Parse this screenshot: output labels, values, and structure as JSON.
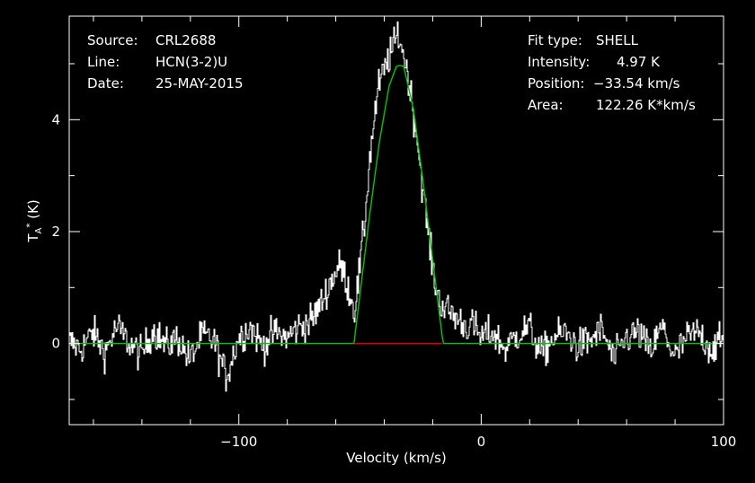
{
  "info": {
    "source_label": "Source:",
    "source": "CRL2688",
    "line_label": "Line:",
    "line": "HCN(3-2)U",
    "date_label": "Date:",
    "date": "25-MAY-2015",
    "fit_type_label": "Fit type:",
    "fit_type": "SHELL",
    "intensity_label": "Intensity:",
    "intensity": "4.97 K",
    "position_label": "Position:",
    "position": "−33.54 km/s",
    "area_label": "Area:",
    "area": "122.26 K*km/s"
  },
  "colors": {
    "background": "#000000",
    "frame": "#ffffff",
    "spectrum": "#ffffff",
    "fit": "#00c800",
    "baseline_window": "#e00000"
  },
  "chart_data": {
    "type": "line",
    "title": "",
    "xlabel": "Velocity (km/s)",
    "ylabel": "T_A* (K)",
    "xlim": [
      -170,
      100
    ],
    "ylim": [
      -1.45,
      5.85
    ],
    "x_ticks": [
      -100,
      0,
      100
    ],
    "x_tick_labels": [
      "−100",
      "0",
      "100"
    ],
    "y_ticks": [
      0,
      2,
      4
    ],
    "y_tick_labels": [
      "0",
      "2",
      "4"
    ],
    "grid": false,
    "series": [
      {
        "kind": "spectrum",
        "x": [
          -170,
          -165,
          -160,
          -155,
          -150,
          -145,
          -140,
          -135,
          -130,
          -125,
          -120,
          -115,
          -110,
          -105,
          -100,
          -95,
          -90,
          -85,
          -80,
          -75,
          -70,
          -68,
          -66,
          -64,
          -62,
          -60,
          -58,
          -56,
          -54,
          -52,
          -50,
          -48,
          -46,
          -44,
          -42,
          -40,
          -38,
          -36,
          -34,
          -32,
          -30,
          -28,
          -26,
          -24,
          -22,
          -20,
          -18,
          -16,
          -14,
          -12,
          -10,
          -8,
          -6,
          -4,
          -2,
          0,
          5,
          10,
          15,
          20,
          25,
          30,
          35,
          40,
          45,
          50,
          55,
          60,
          65,
          70,
          75,
          80,
          85,
          90,
          95,
          100
        ],
        "y": [
          0.05,
          -0.1,
          0.2,
          -0.15,
          0.3,
          0.0,
          -0.2,
          0.25,
          -0.05,
          0.1,
          -0.3,
          0.15,
          0.05,
          -0.6,
          0.1,
          0.3,
          -0.05,
          0.2,
          0.1,
          0.3,
          0.4,
          0.55,
          0.7,
          0.9,
          1.1,
          1.25,
          1.4,
          1.2,
          0.9,
          0.6,
          1.3,
          2.1,
          3.2,
          4.0,
          4.6,
          4.85,
          5.1,
          5.3,
          5.55,
          5.2,
          4.8,
          4.2,
          3.6,
          2.8,
          2.1,
          1.4,
          0.9,
          0.7,
          0.6,
          0.55,
          0.45,
          0.4,
          0.3,
          0.35,
          0.25,
          0.1,
          0.2,
          -0.1,
          0.15,
          0.3,
          -0.2,
          0.1,
          0.2,
          -0.05,
          0.05,
          0.25,
          -0.3,
          0.1,
          0.2,
          -0.15,
          0.3,
          -0.25,
          0.1,
          0.2,
          -0.1,
          0.05
        ]
      },
      {
        "kind": "fit",
        "x": [
          -170,
          -52.5,
          -46,
          -42,
          -38,
          -35,
          -33.5,
          -32,
          -28,
          -24,
          -20,
          -16,
          -15.5,
          100
        ],
        "y": [
          0,
          0,
          2.3,
          3.6,
          4.6,
          4.95,
          4.97,
          4.95,
          4.2,
          2.9,
          1.5,
          0.1,
          0,
          0
        ]
      },
      {
        "kind": "fit-window",
        "x": [
          -52.5,
          -16
        ],
        "y": [
          0,
          0
        ]
      }
    ]
  }
}
